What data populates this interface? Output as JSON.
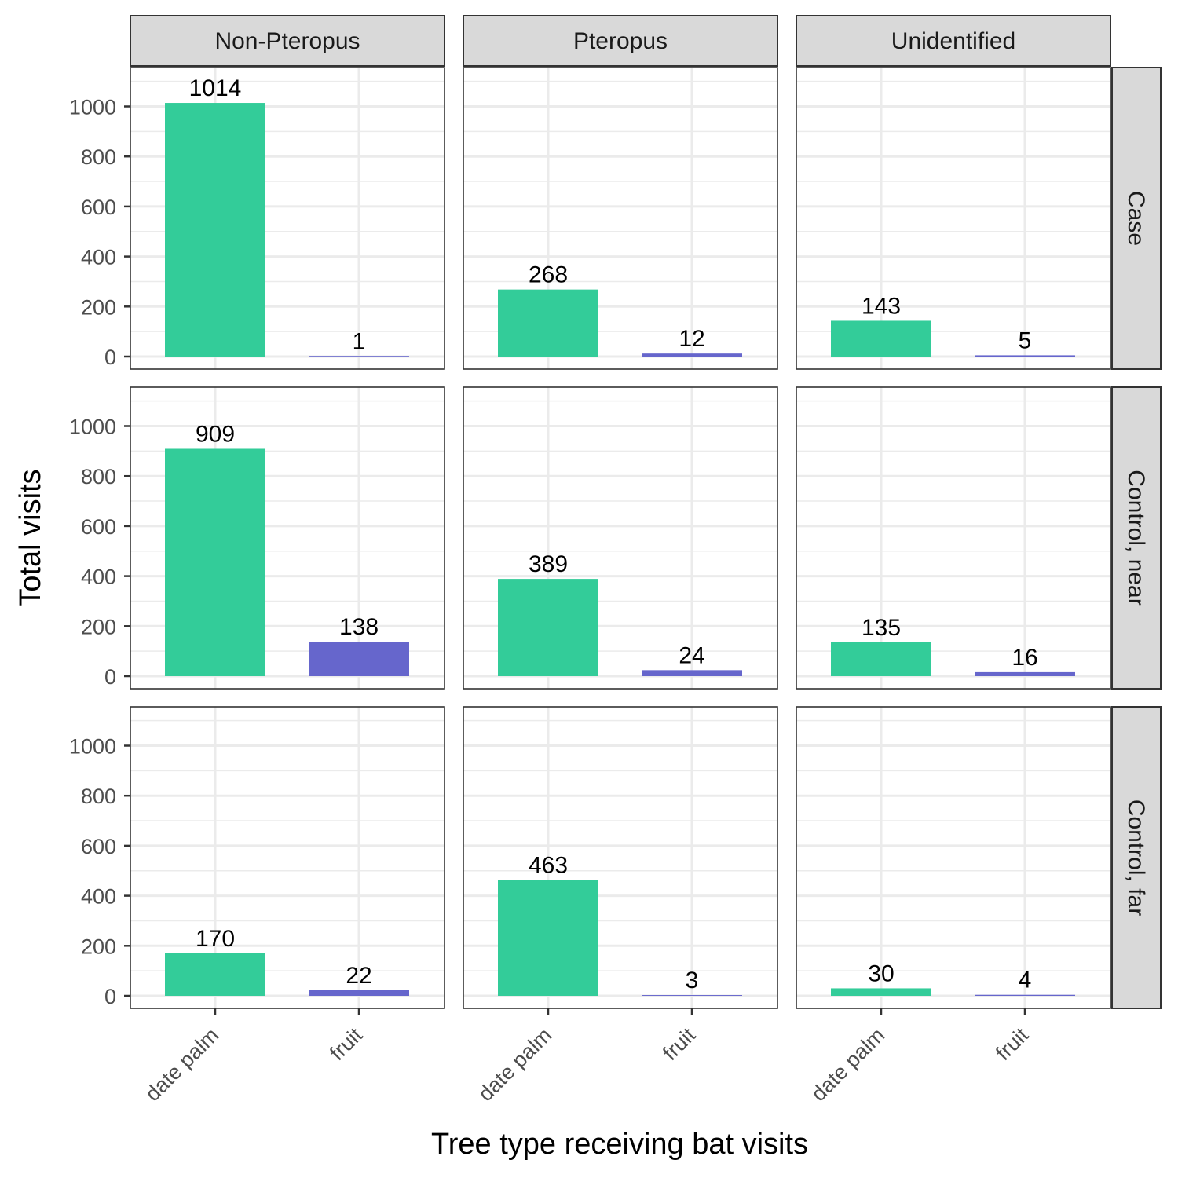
{
  "chart_data": {
    "type": "bar",
    "facet_columns": [
      "Non-Pteropus",
      "Pteropus",
      "Unidentified"
    ],
    "facet_rows": [
      "Case",
      "Control, near",
      "Control, far"
    ],
    "categories": [
      "date palm",
      "fruit"
    ],
    "xlabel": "Tree type receiving bat visits",
    "ylabel": "Total visits",
    "ylim": [
      0,
      1150
    ],
    "yticks": [
      0,
      200,
      400,
      600,
      800,
      1000
    ],
    "grid": true,
    "legend": "none",
    "colors": {
      "date palm": "#33cc99",
      "fruit": "#6666cc"
    },
    "values": [
      [
        [
          1014,
          1
        ],
        [
          268,
          12
        ],
        [
          143,
          5
        ]
      ],
      [
        [
          909,
          138
        ],
        [
          389,
          24
        ],
        [
          135,
          16
        ]
      ],
      [
        [
          170,
          22
        ],
        [
          463,
          3
        ],
        [
          30,
          4
        ]
      ]
    ]
  }
}
